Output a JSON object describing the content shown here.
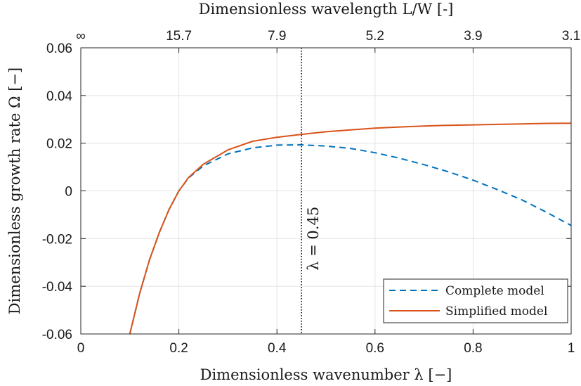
{
  "chart_data": {
    "type": "line",
    "title": "",
    "xlabel": "Dimensionless wavenumber λ [−]",
    "ylabel": "Dimensionless growth rate Ω [−]",
    "top_xlabel": "Dimensionless wavelength L/W [-]",
    "xlim": [
      0,
      1
    ],
    "ylim": [
      -0.06,
      0.06
    ],
    "grid": true,
    "x_ticks": [
      "0",
      "0.2",
      "0.4",
      "0.6",
      "0.8",
      "1"
    ],
    "y_ticks": [
      "-0.06",
      "-0.04",
      "-0.02",
      "0",
      "0.02",
      "0.04",
      "0.06"
    ],
    "top_ticks": [
      "∞",
      "15.7",
      "7.9",
      "5.2",
      "3.9",
      "3.1"
    ],
    "legend_position": "bottom-right",
    "vline": {
      "x": 0.45,
      "label": "λ = 0.45"
    },
    "series": [
      {
        "name": "Complete model",
        "color": "#0072BD",
        "dash": true,
        "x": [
          0.1,
          0.12,
          0.14,
          0.16,
          0.18,
          0.2,
          0.22,
          0.25,
          0.3,
          0.35,
          0.4,
          0.45,
          0.5,
          0.55,
          0.6,
          0.65,
          0.7,
          0.75,
          0.8,
          0.85,
          0.9,
          0.95,
          1.0
        ],
        "y": [
          -0.06,
          -0.043,
          -0.029,
          -0.0175,
          -0.0078,
          0.0,
          0.0055,
          0.0105,
          0.0155,
          0.018,
          0.0192,
          0.0193,
          0.0188,
          0.0178,
          0.016,
          0.0137,
          0.011,
          0.008,
          0.0045,
          0.0005,
          -0.0038,
          -0.009,
          -0.0145
        ]
      },
      {
        "name": "Simplified model",
        "color": "#D95319",
        "dash": false,
        "x": [
          0.1,
          0.12,
          0.14,
          0.16,
          0.18,
          0.2,
          0.22,
          0.25,
          0.3,
          0.35,
          0.4,
          0.45,
          0.5,
          0.55,
          0.6,
          0.65,
          0.7,
          0.75,
          0.8,
          0.85,
          0.9,
          0.95,
          1.0
        ],
        "y": [
          -0.06,
          -0.043,
          -0.029,
          -0.0175,
          -0.0078,
          0.0,
          0.0057,
          0.0112,
          0.0172,
          0.0208,
          0.0225,
          0.0237,
          0.0248,
          0.0256,
          0.0263,
          0.0268,
          0.0272,
          0.0275,
          0.0277,
          0.0279,
          0.0281,
          0.0283,
          0.0284
        ]
      }
    ]
  }
}
